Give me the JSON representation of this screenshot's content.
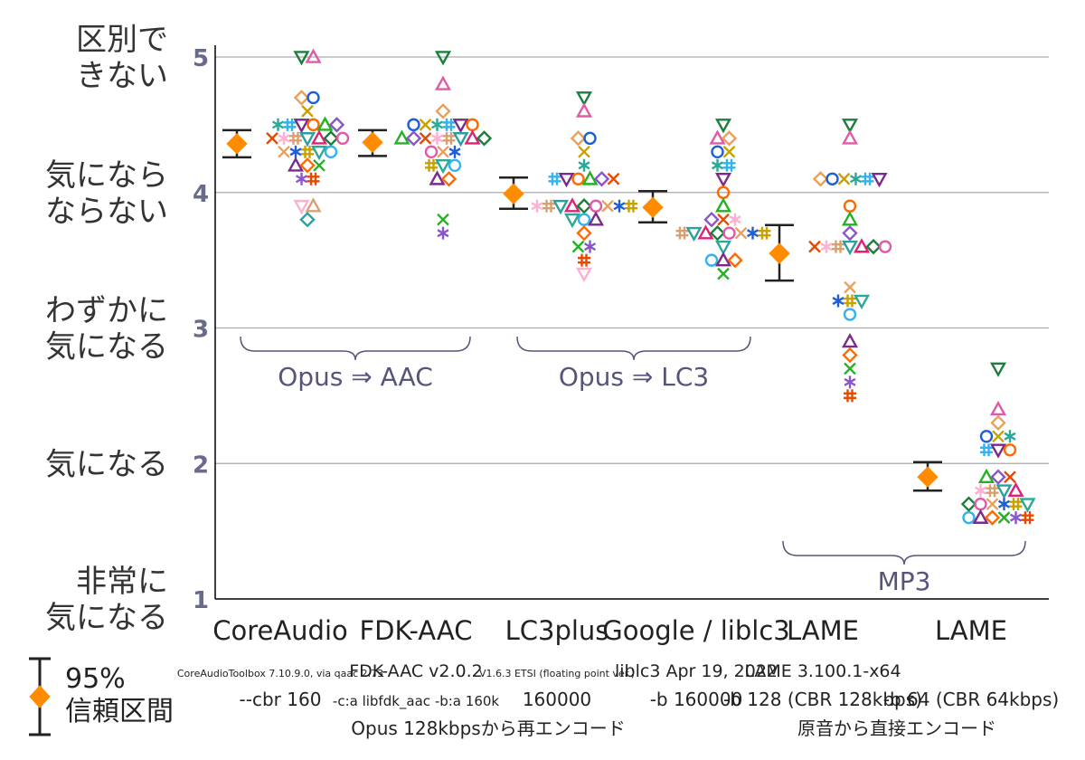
{
  "chart_data": {
    "type": "scatter",
    "ylim": [
      1,
      5
    ],
    "y_ticks": [
      "1",
      "2",
      "3",
      "4",
      "5"
    ],
    "y_category_labels": [
      {
        "value": 5,
        "lines": [
          "区別で",
          "きない"
        ]
      },
      {
        "value": 4,
        "lines": [
          "気になら",
          "ならない"
        ]
      },
      {
        "value": 3,
        "lines": [
          "わずかに",
          "気になる"
        ]
      },
      {
        "value": 2,
        "lines": [
          "気になる"
        ]
      },
      {
        "value": 1,
        "lines": [
          "非常に",
          "気になる"
        ]
      }
    ],
    "categories": [
      {
        "name": "CoreAudio",
        "details": [
          "CoreAudioToolbox 7.10.9.0, via qaac 2.73",
          "--cbr 160"
        ],
        "mean": 4.36,
        "ci_low": 4.26,
        "ci_high": 4.46
      },
      {
        "name": "FDK-AAC",
        "details": [
          "FDK-AAC v2.0.2",
          "-c:a libfdk_aac -b:a 160k"
        ],
        "mean": 4.37,
        "ci_low": 4.27,
        "ci_high": 4.46
      },
      {
        "name": "LC3plus",
        "details": [
          "V1.6.3 ETSI (floating point ver.)",
          "160000"
        ],
        "mean": 3.99,
        "ci_low": 3.88,
        "ci_high": 4.11
      },
      {
        "name": "Google / liblc3",
        "details": [
          "liblc3 Apr 19, 2022",
          "-b 160000"
        ],
        "mean": 3.89,
        "ci_low": 3.78,
        "ci_high": 4.01
      },
      {
        "name": "LAME",
        "details": [
          "LAME 3.100.1-x64",
          "-b 128 (CBR 128kbps)"
        ],
        "mean": 3.55,
        "ci_low": 3.35,
        "ci_high": 3.76
      },
      {
        "name": "LAME",
        "details": [
          "",
          "-b 64 (CBR 64kbps)"
        ],
        "mean": 1.9,
        "ci_low": 1.8,
        "ci_high": 2.01
      }
    ],
    "groups": [
      {
        "label": "Opus ⇒ AAC",
        "from": 0,
        "to": 1
      },
      {
        "label": "Opus ⇒ LC3",
        "from": 2,
        "to": 3
      },
      {
        "label": "MP3",
        "from": 4,
        "to": 5
      }
    ],
    "bottom_notes": [
      {
        "text": "Opus 128kbpsから再エンコード",
        "from": 0,
        "to": 3
      },
      {
        "text": "原音から直接エンコード",
        "from": 4,
        "to": 5
      }
    ],
    "legend": {
      "lines": [
        "95%",
        "信頼区間"
      ],
      "placement": "bottom-left"
    },
    "marker_colors": [
      "#1a7f3c",
      "#e05aa8",
      "#e8a05a",
      "#1f5fd6",
      "#c9a000",
      "#2aa898",
      "#33b2f0",
      "#7a2a8a",
      "#ff6a00",
      "#23b223",
      "#8855cc",
      "#e64a00",
      "#ffb0d0",
      "#d8a070",
      "#2aa0a0",
      "#dd2277"
    ],
    "mean_color": "#ff8c00",
    "points": [
      [
        [
          5.0,
          5.0,
          4.7,
          4.7,
          4.6,
          4.5,
          4.5,
          4.5,
          4.5,
          4.5,
          4.5,
          4.4,
          4.4,
          4.4,
          4.4,
          4.4,
          4.4,
          4.4,
          4.3,
          4.3,
          4.3,
          4.3,
          4.3,
          4.2,
          4.2,
          4.2,
          4.1,
          4.1,
          3.9,
          3.9,
          3.8
        ]
      ],
      [
        [
          5.0,
          4.8,
          4.6,
          4.5,
          4.5,
          4.5,
          4.5,
          4.5,
          4.5,
          4.4,
          4.4,
          4.4,
          4.4,
          4.4,
          4.4,
          4.4,
          4.4,
          4.3,
          4.3,
          4.3,
          4.2,
          4.2,
          4.2,
          4.1,
          4.1,
          3.8,
          3.7
        ]
      ],
      [
        [
          4.7,
          4.6,
          4.4,
          4.4,
          4.3,
          4.2,
          4.1,
          4.1,
          4.1,
          4.1,
          4.1,
          4.1,
          3.9,
          3.9,
          3.9,
          3.9,
          3.9,
          3.9,
          3.9,
          3.9,
          3.9,
          3.8,
          3.8,
          3.8,
          3.7,
          3.6,
          3.6,
          3.5,
          3.4
        ]
      ],
      [
        [
          4.5,
          4.4,
          4.4,
          4.3,
          4.3,
          4.2,
          4.2,
          4.1,
          4.0,
          3.9,
          3.8,
          3.8,
          3.8,
          3.7,
          3.7,
          3.7,
          3.7,
          3.7,
          3.7,
          3.7,
          3.7,
          3.6,
          3.5,
          3.5,
          3.5,
          3.4
        ]
      ],
      [
        [
          4.5,
          4.4,
          4.1,
          4.1,
          4.1,
          4.1,
          4.1,
          4.1,
          3.9,
          3.8,
          3.7,
          3.6,
          3.6,
          3.6,
          3.6,
          3.6,
          3.6,
          3.6,
          3.3,
          3.2,
          3.2,
          3.2,
          3.1,
          2.9,
          2.8,
          2.7,
          2.6,
          2.5
        ]
      ],
      [
        [
          2.7,
          2.4,
          2.3,
          2.2,
          2.2,
          2.2,
          2.1,
          2.1,
          2.1,
          1.9,
          1.9,
          1.9,
          1.8,
          1.8,
          1.8,
          1.8,
          1.7,
          1.7,
          1.7,
          1.7,
          1.7,
          1.7,
          1.6,
          1.6,
          1.6,
          1.6,
          1.6,
          1.6
        ]
      ]
    ]
  }
}
